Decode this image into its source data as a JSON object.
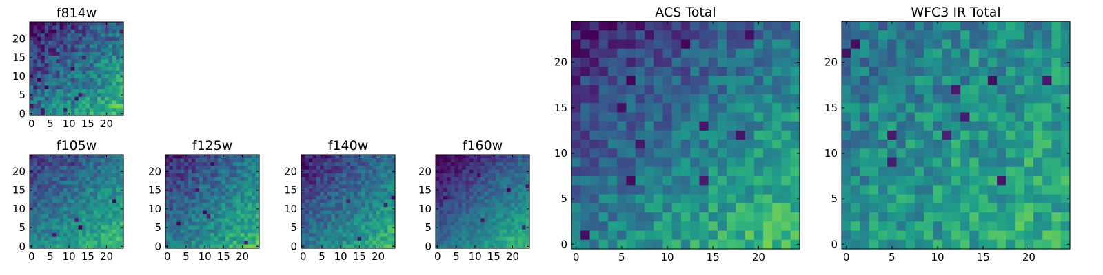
{
  "chart_data": [
    {
      "type": "heatmap",
      "title": "f814w",
      "xlabel": "",
      "ylabel": "",
      "colormap": "viridis",
      "grid_size": 25,
      "xlim": [
        0,
        24
      ],
      "ylim": [
        0,
        24
      ],
      "xticks": [
        0,
        5,
        10,
        15,
        20
      ],
      "yticks": [
        0,
        5,
        10,
        15,
        20
      ],
      "seed": 11,
      "gradient": {
        "base": 0.38,
        "x_weight": 0.3,
        "y_weight": -0.33
      },
      "noise": 0.17,
      "dark_pixels": 14
    },
    {
      "type": "heatmap",
      "title": "f105w",
      "xlabel": "",
      "ylabel": "",
      "colormap": "viridis",
      "grid_size": 25,
      "xlim": [
        0,
        24
      ],
      "ylim": [
        0,
        24
      ],
      "xticks": [
        0,
        5,
        10,
        15,
        20
      ],
      "yticks": [
        0,
        5,
        10,
        15,
        20
      ],
      "seed": 23,
      "gradient": {
        "base": 0.45,
        "x_weight": 0.25,
        "y_weight": -0.3
      },
      "noise": 0.12,
      "dark_pixels": 6
    },
    {
      "type": "heatmap",
      "title": "f125w",
      "xlabel": "",
      "ylabel": "",
      "colormap": "viridis",
      "grid_size": 25,
      "xlim": [
        0,
        24
      ],
      "ylim": [
        0,
        24
      ],
      "xticks": [
        0,
        5,
        10,
        15,
        20
      ],
      "yticks": [
        0,
        5,
        10,
        15,
        20
      ],
      "seed": 37,
      "gradient": {
        "base": 0.4,
        "x_weight": 0.3,
        "y_weight": -0.3
      },
      "noise": 0.13,
      "dark_pixels": 6
    },
    {
      "type": "heatmap",
      "title": "f140w",
      "xlabel": "",
      "ylabel": "",
      "colormap": "viridis",
      "grid_size": 25,
      "xlim": [
        0,
        24
      ],
      "ylim": [
        0,
        24
      ],
      "xticks": [
        0,
        5,
        10,
        15,
        20
      ],
      "yticks": [
        0,
        5,
        10,
        15,
        20
      ],
      "seed": 41,
      "gradient": {
        "base": 0.38,
        "x_weight": 0.3,
        "y_weight": -0.32
      },
      "noise": 0.12,
      "dark_pixels": 5
    },
    {
      "type": "heatmap",
      "title": "f160w",
      "xlabel": "",
      "ylabel": "",
      "colormap": "viridis",
      "grid_size": 25,
      "xlim": [
        0,
        24
      ],
      "ylim": [
        0,
        24
      ],
      "xticks": [
        0,
        5,
        10,
        15,
        20
      ],
      "yticks": [
        0,
        5,
        10,
        15,
        20
      ],
      "seed": 53,
      "gradient": {
        "base": 0.35,
        "x_weight": 0.35,
        "y_weight": -0.38
      },
      "noise": 0.09,
      "dark_pixels": 8
    },
    {
      "type": "heatmap",
      "title": "ACS Total",
      "xlabel": "",
      "ylabel": "",
      "colormap": "viridis",
      "grid_size": 25,
      "xlim": [
        0,
        24
      ],
      "ylim": [
        0,
        24
      ],
      "xticks": [
        0,
        5,
        10,
        15,
        20
      ],
      "yticks": [
        0,
        5,
        10,
        15,
        20
      ],
      "seed": 67,
      "gradient": {
        "base": 0.42,
        "x_weight": 0.3,
        "y_weight": -0.34
      },
      "noise": 0.14,
      "dark_pixels": 12
    },
    {
      "type": "heatmap",
      "title": "WFC3 IR Total",
      "xlabel": "",
      "ylabel": "",
      "colormap": "viridis",
      "grid_size": 25,
      "xlim": [
        0,
        24
      ],
      "ylim": [
        0,
        24
      ],
      "xticks": [
        0,
        5,
        10,
        15,
        20
      ],
      "yticks": [
        0,
        5,
        10,
        15,
        20
      ],
      "seed": 79,
      "gradient": {
        "base": 0.52,
        "x_weight": 0.12,
        "y_weight": -0.14
      },
      "noise": 0.16,
      "dark_pixels": 10
    }
  ]
}
